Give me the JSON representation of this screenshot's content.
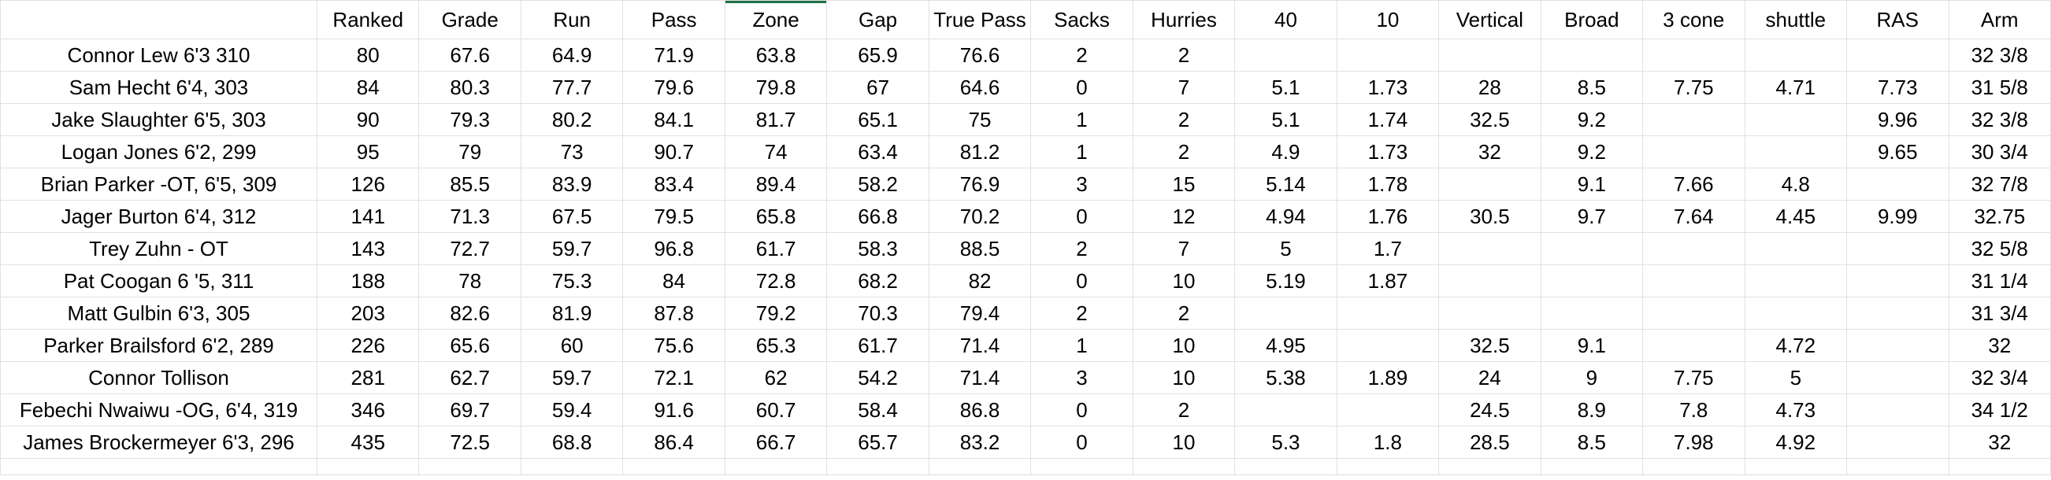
{
  "table": {
    "header": [
      null,
      "Ranked",
      "Grade",
      "Run",
      "Pass",
      "Zone",
      "Gap",
      "True Pass",
      "Sacks",
      "Hurries",
      "40",
      "10",
      "Vertical",
      "Broad",
      "3 cone",
      "shuttle",
      "RAS",
      "Arm"
    ],
    "rows": [
      [
        "Connor Lew 6'3 310",
        80,
        67.6,
        64.9,
        71.9,
        63.8,
        65.9,
        76.6,
        2,
        2,
        null,
        null,
        null,
        null,
        null,
        null,
        null,
        "32 3/8"
      ],
      [
        "Sam Hecht 6'4, 303",
        84,
        80.3,
        77.7,
        79.6,
        79.8,
        67,
        64.6,
        0,
        7,
        5.1,
        1.73,
        28,
        8.5,
        7.75,
        4.71,
        7.73,
        "31 5/8"
      ],
      [
        "Jake Slaughter 6'5, 303",
        90,
        79.3,
        80.2,
        84.1,
        81.7,
        65.1,
        75,
        1,
        2,
        5.1,
        1.74,
        32.5,
        9.2,
        null,
        null,
        9.96,
        "32 3/8"
      ],
      [
        "Logan Jones 6'2, 299",
        95,
        79,
        73,
        90.7,
        74,
        63.4,
        81.2,
        1,
        2,
        4.9,
        1.73,
        32,
        9.2,
        null,
        null,
        9.65,
        "30 3/4"
      ],
      [
        "Brian Parker -OT, 6'5, 309",
        126,
        85.5,
        83.9,
        83.4,
        89.4,
        58.2,
        76.9,
        3,
        15,
        5.14,
        1.78,
        null,
        9.1,
        7.66,
        4.8,
        null,
        "32 7/8"
      ],
      [
        "Jager Burton 6'4, 312",
        141,
        71.3,
        67.5,
        79.5,
        65.8,
        66.8,
        70.2,
        0,
        12,
        4.94,
        1.76,
        30.5,
        9.7,
        7.64,
        4.45,
        9.99,
        "32.75"
      ],
      [
        "Trey Zuhn - OT",
        143,
        72.7,
        59.7,
        96.8,
        61.7,
        58.3,
        88.5,
        2,
        7,
        5,
        1.7,
        null,
        null,
        null,
        null,
        null,
        "32 5/8"
      ],
      [
        "Pat Coogan 6 '5, 311",
        188,
        78,
        75.3,
        84,
        72.8,
        68.2,
        82,
        0,
        10,
        5.19,
        1.87,
        null,
        null,
        null,
        null,
        null,
        "31 1/4"
      ],
      [
        "Matt Gulbin 6'3, 305",
        203,
        82.6,
        81.9,
        87.8,
        79.2,
        70.3,
        79.4,
        2,
        2,
        null,
        null,
        null,
        null,
        null,
        null,
        null,
        "31 3/4"
      ],
      [
        "Parker Brailsford 6'2, 289",
        226,
        65.6,
        60,
        75.6,
        65.3,
        61.7,
        71.4,
        1,
        10,
        4.95,
        null,
        32.5,
        9.1,
        null,
        4.72,
        null,
        "32"
      ],
      [
        "Connor Tollison",
        281,
        62.7,
        59.7,
        72.1,
        62,
        54.2,
        71.4,
        3,
        10,
        5.38,
        1.89,
        24,
        9,
        7.75,
        5,
        null,
        "32 3/4"
      ],
      [
        "Febechi Nwaiwu -OG, 6'4, 319",
        346,
        69.7,
        59.4,
        91.6,
        60.7,
        58.4,
        86.8,
        0,
        2,
        null,
        null,
        24.5,
        8.9,
        7.8,
        4.73,
        null,
        "34 1/2"
      ],
      [
        "James Brockermeyer 6'3, 296",
        435,
        72.5,
        68.8,
        86.4,
        66.7,
        65.7,
        83.2,
        0,
        10,
        5.3,
        1.8,
        28.5,
        8.5,
        7.98,
        4.92,
        null,
        "32"
      ]
    ]
  }
}
